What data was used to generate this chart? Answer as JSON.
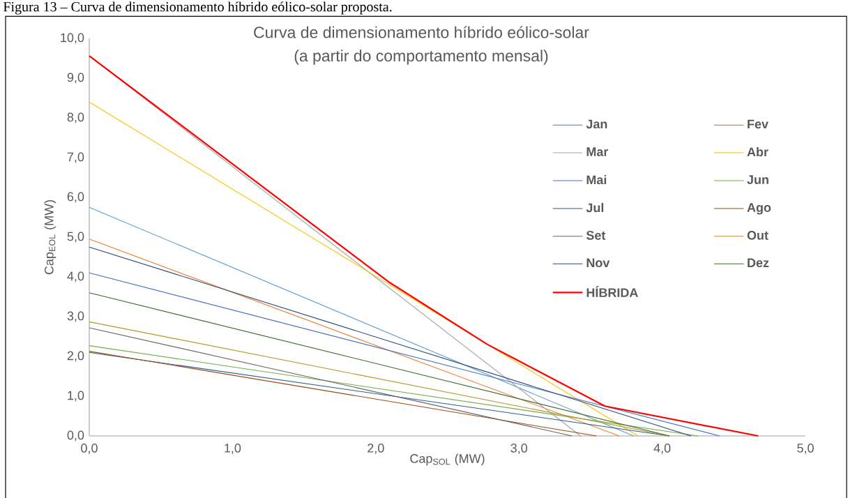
{
  "chart_data": {
    "type": "line",
    "title": "Curva de dimensionamento híbrido eólico-solar",
    "subtitle": "(a partir do comportamento mensal)",
    "xlabel": "Cap$_{SOL}$ (MW)",
    "ylabel": "Cap$_{EOL}$ (MW)",
    "annotations": [
      "Figura 13 – Curva de dimensionamento híbrido eólico-solar proposta."
    ],
    "xlim": [
      0,
      5
    ],
    "ylim": [
      0,
      10
    ],
    "xticks": [
      {
        "value": 0,
        "label": "0,0"
      },
      {
        "value": 1,
        "label": "1,0"
      },
      {
        "value": 2,
        "label": "2,0"
      },
      {
        "value": 3,
        "label": "3,0"
      },
      {
        "value": 4,
        "label": "4,0"
      },
      {
        "value": 5,
        "label": "5,0"
      }
    ],
    "yticks": [
      {
        "value": 0,
        "label": "0,0"
      },
      {
        "value": 1,
        "label": "1,0"
      },
      {
        "value": 2,
        "label": "2,0"
      },
      {
        "value": 3,
        "label": "3,0"
      },
      {
        "value": 4,
        "label": "4,0"
      },
      {
        "value": 5,
        "label": "5,0"
      },
      {
        "value": 6,
        "label": "6,0"
      },
      {
        "value": 7,
        "label": "7,0"
      },
      {
        "value": 8,
        "label": "8,0"
      },
      {
        "value": 9,
        "label": "9,0"
      },
      {
        "value": 10,
        "label": "10,0"
      }
    ],
    "grid": false,
    "legend": "right",
    "marker": "none",
    "line_style": "solid",
    "series": [
      {
        "name": "Jan",
        "color": "#5b9bd5",
        "x": [
          0,
          3.8
        ],
        "values": [
          5.75,
          0
        ]
      },
      {
        "name": "Fev",
        "color": "#ed7d31",
        "x": [
          0,
          3.7
        ],
        "values": [
          4.95,
          0
        ]
      },
      {
        "name": "Mar",
        "color": "#a5a5a5",
        "x": [
          0,
          3.43
        ],
        "values": [
          9.56,
          0
        ]
      },
      {
        "name": "Abr",
        "color": "#ffc000",
        "x": [
          0,
          3.83
        ],
        "values": [
          8.4,
          0
        ]
      },
      {
        "name": "Mai",
        "color": "#4472c4",
        "x": [
          0,
          4.4
        ],
        "values": [
          4.1,
          0
        ]
      },
      {
        "name": "Jun",
        "color": "#70ad47",
        "x": [
          0,
          4.25
        ],
        "values": [
          2.27,
          0
        ]
      },
      {
        "name": "Jul",
        "color": "#255e91",
        "x": [
          0,
          4.05
        ],
        "values": [
          2.1,
          0
        ]
      },
      {
        "name": "Ago",
        "color": "#9e480e",
        "x": [
          0,
          3.54
        ],
        "values": [
          2.13,
          0
        ]
      },
      {
        "name": "Set",
        "color": "#636363",
        "x": [
          0,
          3.37
        ],
        "values": [
          2.72,
          0
        ]
      },
      {
        "name": "Out",
        "color": "#b8952a",
        "x": [
          0,
          4.05
        ],
        "values": [
          2.87,
          0
        ]
      },
      {
        "name": "Nov",
        "color": "#264478",
        "x": [
          0,
          4.2
        ],
        "values": [
          4.75,
          0
        ]
      },
      {
        "name": "Dez",
        "color": "#43682b",
        "x": [
          0,
          4.05
        ],
        "values": [
          3.6,
          0
        ]
      },
      {
        "name": "HÍBRIDA",
        "color": "#ff0000",
        "x": [
          0,
          2.1,
          2.78,
          3.6,
          4.67
        ],
        "values": [
          9.56,
          3.85,
          2.3,
          0.75,
          0
        ]
      }
    ]
  }
}
